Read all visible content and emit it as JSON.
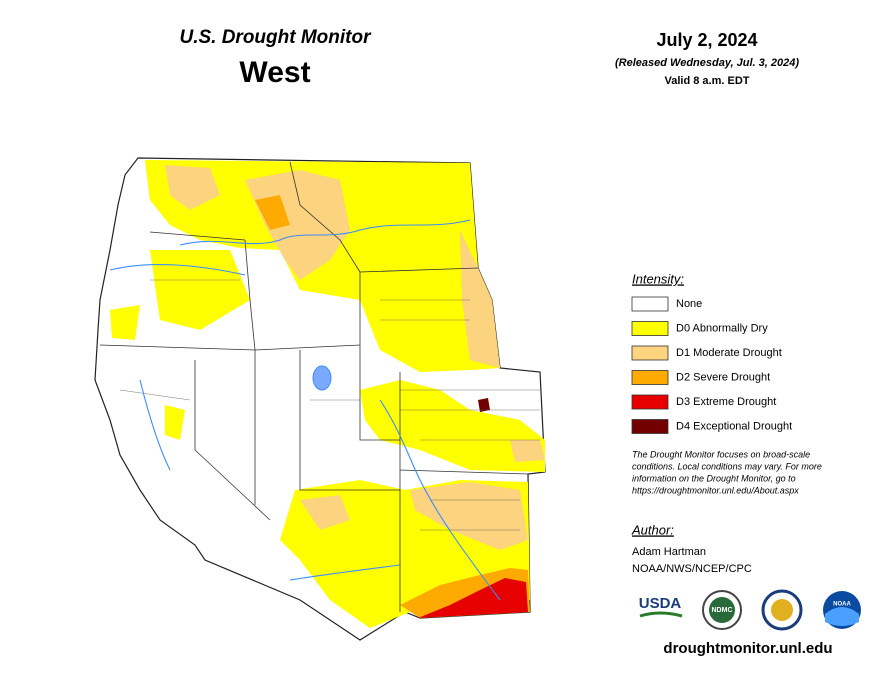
{
  "header": {
    "title": "U.S. Drought Monitor",
    "region": "West",
    "date": "July 2, 2024",
    "released": "(Released Wednesday, Jul. 3, 2024)",
    "valid": "Valid 8 a.m. EDT"
  },
  "legend": {
    "title": "Intensity:",
    "items": [
      {
        "label": "None",
        "color": "#ffffff"
      },
      {
        "label": "D0 Abnormally Dry",
        "color": "#ffff00"
      },
      {
        "label": "D1 Moderate Drought",
        "color": "#fcd37f"
      },
      {
        "label": "D2 Severe Drought",
        "color": "#ffaa00"
      },
      {
        "label": "D3 Extreme Drought",
        "color": "#e60000"
      },
      {
        "label": "D4 Exceptional Drought",
        "color": "#730000"
      }
    ]
  },
  "note": [
    "The Drought Monitor focuses on broad-scale",
    "conditions. Local conditions may vary. For more",
    "information on the Drought Monitor, go to",
    "https://droughtmonitor.unl.edu/About.aspx"
  ],
  "author": {
    "title": "Author:",
    "name": "Adam Hartman",
    "org": "NOAA/NWS/NCEP/CPC"
  },
  "logos": [
    "USDA",
    "NDMC",
    "NOAA"
  ],
  "url": "droughtmonitor.unl.edu"
}
